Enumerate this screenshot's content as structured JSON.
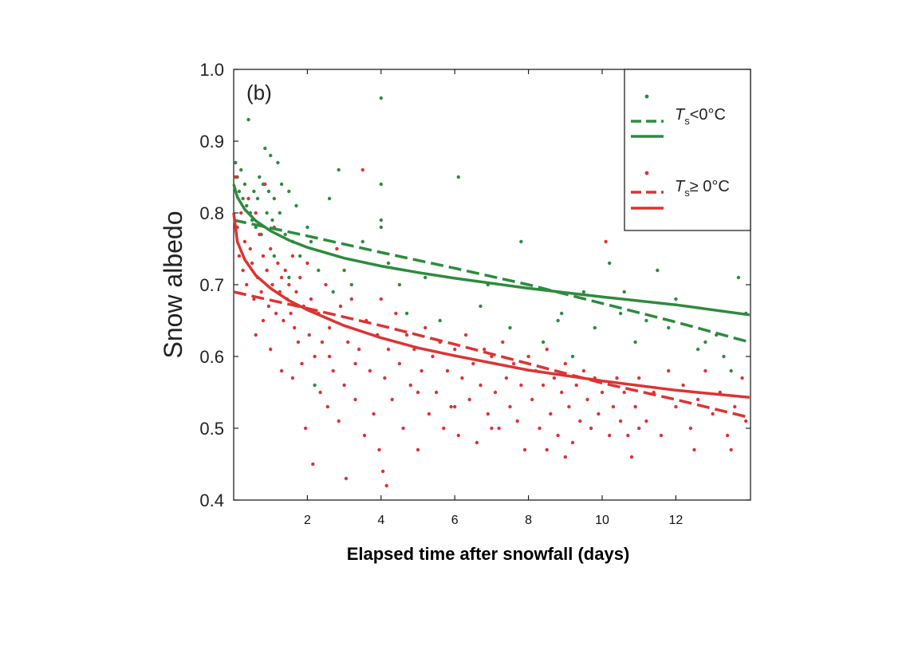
{
  "chart_data": {
    "type": "scatter",
    "panel_label": "(b)",
    "xlabel": "Elapsed time after snowfall (days)",
    "ylabel": "Snow albedo",
    "xlim": [
      0,
      14
    ],
    "ylim": [
      0.4,
      1.0
    ],
    "x_ticks": [
      2,
      4,
      6,
      8,
      10,
      12
    ],
    "y_ticks": [
      "0.4",
      "0.5",
      "0.6",
      "0.7",
      "0.8",
      "0.9",
      "1.0"
    ],
    "grid": false,
    "legend_position": "top-right",
    "legend": {
      "cold_symbol": "T",
      "cold_subscript": "s",
      "cold_condition": "<0°C",
      "warm_symbol": "T",
      "warm_subscript": "s",
      "warm_condition": "≥ 0°C"
    },
    "series": [
      {
        "kind": "points",
        "group": "cold",
        "color": "#2e8b3e",
        "points": [
          [
            0.05,
            0.87
          ],
          [
            0.1,
            0.85
          ],
          [
            0.15,
            0.83
          ],
          [
            0.2,
            0.86
          ],
          [
            0.25,
            0.82
          ],
          [
            0.3,
            0.84
          ],
          [
            0.35,
            0.81
          ],
          [
            0.4,
            0.93
          ],
          [
            0.45,
            0.8
          ],
          [
            0.5,
            0.79
          ],
          [
            0.55,
            0.83
          ],
          [
            0.6,
            0.78
          ],
          [
            0.65,
            0.82
          ],
          [
            0.7,
            0.85
          ],
          [
            0.75,
            0.77
          ],
          [
            0.8,
            0.84
          ],
          [
            0.85,
            0.89
          ],
          [
            0.9,
            0.8
          ],
          [
            0.95,
            0.83
          ],
          [
            1.0,
            0.88
          ],
          [
            1.05,
            0.79
          ],
          [
            1.1,
            0.82
          ],
          [
            1.2,
            0.87
          ],
          [
            1.25,
            0.8
          ],
          [
            1.3,
            0.84
          ],
          [
            1.4,
            0.77
          ],
          [
            1.5,
            0.83
          ],
          [
            1.6,
            0.76
          ],
          [
            1.7,
            0.81
          ],
          [
            1.8,
            0.74
          ],
          [
            2.0,
            0.78
          ],
          [
            2.1,
            0.76
          ],
          [
            2.3,
            0.72
          ],
          [
            2.6,
            0.82
          ],
          [
            2.85,
            0.86
          ],
          [
            3.0,
            0.72
          ],
          [
            3.2,
            0.7
          ],
          [
            3.5,
            0.76
          ],
          [
            4.0,
            0.96
          ],
          [
            4.0,
            0.84
          ],
          [
            4.0,
            0.79
          ],
          [
            4.0,
            0.78
          ],
          [
            4.2,
            0.73
          ],
          [
            4.5,
            0.7
          ],
          [
            5.2,
            0.71
          ],
          [
            6.1,
            0.85
          ],
          [
            7.8,
            0.76
          ],
          [
            8.8,
            0.65
          ],
          [
            9.5,
            0.69
          ],
          [
            9.8,
            0.64
          ],
          [
            10.2,
            0.73
          ],
          [
            10.5,
            0.66
          ],
          [
            11.2,
            0.65
          ],
          [
            11.5,
            0.72
          ],
          [
            12.0,
            0.68
          ],
          [
            12.4,
            0.97
          ],
          [
            12.8,
            0.62
          ],
          [
            13.3,
            0.6
          ],
          [
            13.7,
            0.71
          ],
          [
            13.9,
            0.66
          ],
          [
            1.5,
            0.71
          ],
          [
            2.2,
            0.56
          ],
          [
            3.9,
            0.63
          ],
          [
            5.6,
            0.65
          ],
          [
            6.7,
            0.67
          ],
          [
            7.5,
            0.64
          ],
          [
            8.4,
            0.62
          ],
          [
            9.2,
            0.6
          ],
          [
            10.9,
            0.62
          ],
          [
            11.8,
            0.64
          ],
          [
            12.6,
            0.61
          ],
          [
            13.1,
            0.63
          ],
          [
            13.5,
            0.58
          ],
          [
            0.9,
            0.72
          ],
          [
            1.1,
            0.74
          ],
          [
            2.7,
            0.69
          ],
          [
            4.7,
            0.66
          ],
          [
            6.9,
            0.7
          ],
          [
            8.9,
            0.66
          ],
          [
            10.6,
            0.69
          ]
        ]
      },
      {
        "kind": "points",
        "group": "warm",
        "color": "#dd3333",
        "points": [
          [
            0.05,
            0.85
          ],
          [
            0.1,
            0.78
          ],
          [
            0.15,
            0.74
          ],
          [
            0.2,
            0.8
          ],
          [
            0.25,
            0.72
          ],
          [
            0.3,
            0.76
          ],
          [
            0.35,
            0.7
          ],
          [
            0.4,
            0.82
          ],
          [
            0.45,
            0.75
          ],
          [
            0.5,
            0.73
          ],
          [
            0.55,
            0.68
          ],
          [
            0.6,
            0.8
          ],
          [
            0.65,
            0.71
          ],
          [
            0.7,
            0.77
          ],
          [
            0.75,
            0.69
          ],
          [
            0.8,
            0.74
          ],
          [
            0.85,
            0.84
          ],
          [
            0.9,
            0.72
          ],
          [
            0.95,
            0.67
          ],
          [
            1.0,
            0.75
          ],
          [
            1.05,
            0.7
          ],
          [
            1.1,
            0.78
          ],
          [
            1.15,
            0.66
          ],
          [
            1.2,
            0.73
          ],
          [
            1.25,
            0.69
          ],
          [
            1.3,
            0.71
          ],
          [
            1.35,
            0.65
          ],
          [
            1.4,
            0.72
          ],
          [
            1.45,
            0.68
          ],
          [
            1.5,
            0.7
          ],
          [
            1.55,
            0.66
          ],
          [
            1.6,
            0.74
          ],
          [
            1.65,
            0.64
          ],
          [
            1.7,
            0.69
          ],
          [
            1.75,
            0.62
          ],
          [
            1.8,
            0.71
          ],
          [
            1.85,
            0.59
          ],
          [
            1.9,
            0.67
          ],
          [
            1.95,
            0.5
          ],
          [
            2.0,
            0.73
          ],
          [
            2.05,
            0.63
          ],
          [
            2.1,
            0.68
          ],
          [
            2.15,
            0.45
          ],
          [
            2.2,
            0.6
          ],
          [
            2.3,
            0.66
          ],
          [
            2.35,
            0.55
          ],
          [
            2.4,
            0.62
          ],
          [
            2.5,
            0.7
          ],
          [
            2.55,
            0.53
          ],
          [
            2.6,
            0.64
          ],
          [
            2.7,
            0.58
          ],
          [
            2.8,
            0.75
          ],
          [
            2.85,
            0.51
          ],
          [
            2.9,
            0.67
          ],
          [
            3.0,
            0.56
          ],
          [
            3.05,
            0.43
          ],
          [
            3.1,
            0.62
          ],
          [
            3.2,
            0.68
          ],
          [
            3.3,
            0.54
          ],
          [
            3.4,
            0.61
          ],
          [
            3.5,
            0.86
          ],
          [
            3.55,
            0.49
          ],
          [
            3.6,
            0.65
          ],
          [
            3.7,
            0.58
          ],
          [
            3.8,
            0.52
          ],
          [
            3.9,
            0.63
          ],
          [
            3.95,
            0.47
          ],
          [
            4.0,
            0.68
          ],
          [
            4.05,
            0.44
          ],
          [
            4.1,
            0.57
          ],
          [
            4.15,
            0.42
          ],
          [
            4.2,
            0.61
          ],
          [
            4.3,
            0.54
          ],
          [
            4.4,
            0.66
          ],
          [
            4.5,
            0.59
          ],
          [
            4.6,
            0.5
          ],
          [
            4.7,
            0.63
          ],
          [
            4.8,
            0.56
          ],
          [
            4.9,
            0.61
          ],
          [
            5.0,
            0.47
          ],
          [
            5.1,
            0.58
          ],
          [
            5.2,
            0.64
          ],
          [
            5.3,
            0.52
          ],
          [
            5.4,
            0.6
          ],
          [
            5.5,
            0.55
          ],
          [
            5.6,
            0.62
          ],
          [
            5.7,
            0.5
          ],
          [
            5.8,
            0.58
          ],
          [
            5.9,
            0.53
          ],
          [
            6.0,
            0.61
          ],
          [
            6.1,
            0.49
          ],
          [
            6.2,
            0.57
          ],
          [
            6.3,
            0.63
          ],
          [
            6.4,
            0.54
          ],
          [
            6.5,
            0.59
          ],
          [
            6.6,
            0.48
          ],
          [
            6.7,
            0.56
          ],
          [
            6.8,
            0.61
          ],
          [
            6.9,
            0.52
          ],
          [
            7.0,
            0.6
          ],
          [
            7.1,
            0.55
          ],
          [
            7.2,
            0.5
          ],
          [
            7.3,
            0.62
          ],
          [
            7.4,
            0.57
          ],
          [
            7.5,
            0.53
          ],
          [
            7.6,
            0.59
          ],
          [
            7.7,
            0.51
          ],
          [
            7.8,
            0.56
          ],
          [
            7.9,
            0.47
          ],
          [
            8.0,
            0.6
          ],
          [
            8.1,
            0.54
          ],
          [
            8.2,
            0.58
          ],
          [
            8.3,
            0.5
          ],
          [
            8.4,
            0.56
          ],
          [
            8.5,
            0.61
          ],
          [
            8.6,
            0.52
          ],
          [
            8.7,
            0.57
          ],
          [
            8.8,
            0.49
          ],
          [
            8.9,
            0.55
          ],
          [
            9.0,
            0.59
          ],
          [
            9.1,
            0.53
          ],
          [
            9.2,
            0.48
          ],
          [
            9.3,
            0.56
          ],
          [
            9.4,
            0.51
          ],
          [
            9.5,
            0.58
          ],
          [
            9.6,
            0.54
          ],
          [
            9.7,
            0.5
          ],
          [
            9.8,
            0.57
          ],
          [
            9.9,
            0.52
          ],
          [
            10.0,
            0.55
          ],
          [
            10.1,
            0.76
          ],
          [
            10.2,
            0.49
          ],
          [
            10.3,
            0.53
          ],
          [
            10.4,
            0.57
          ],
          [
            10.5,
            0.51
          ],
          [
            10.6,
            0.55
          ],
          [
            10.7,
            0.49
          ],
          [
            10.8,
            0.46
          ],
          [
            10.9,
            0.53
          ],
          [
            11.0,
            0.57
          ],
          [
            11.2,
            0.51
          ],
          [
            11.4,
            0.55
          ],
          [
            11.6,
            0.49
          ],
          [
            11.8,
            0.58
          ],
          [
            12.0,
            0.53
          ],
          [
            12.2,
            0.56
          ],
          [
            12.4,
            0.5
          ],
          [
            12.6,
            0.54
          ],
          [
            12.8,
            0.58
          ],
          [
            13.0,
            0.52
          ],
          [
            13.2,
            0.55
          ],
          [
            13.4,
            0.49
          ],
          [
            13.6,
            0.53
          ],
          [
            13.8,
            0.57
          ],
          [
            13.9,
            0.51
          ],
          [
            0.6,
            0.63
          ],
          [
            0.8,
            0.65
          ],
          [
            1.0,
            0.61
          ],
          [
            1.3,
            0.58
          ],
          [
            1.6,
            0.57
          ],
          [
            2.6,
            0.6
          ],
          [
            3.3,
            0.59
          ],
          [
            5.0,
            0.55
          ],
          [
            6.0,
            0.53
          ],
          [
            7.0,
            0.5
          ],
          [
            8.5,
            0.47
          ],
          [
            9.0,
            0.46
          ],
          [
            11.0,
            0.5
          ],
          [
            12.5,
            0.47
          ],
          [
            13.5,
            0.47
          ]
        ]
      },
      {
        "kind": "line",
        "group": "cold",
        "style": "dashed",
        "color": "#2e8b3e",
        "x": [
          0,
          2,
          4,
          6,
          8,
          10,
          12,
          14
        ],
        "y": [
          0.79,
          0.768,
          0.745,
          0.723,
          0.7,
          0.674,
          0.648,
          0.62
        ]
      },
      {
        "kind": "line",
        "group": "cold",
        "style": "solid",
        "color": "#2e8b3e",
        "x": [
          0,
          0.1,
          0.3,
          0.6,
          1,
          1.5,
          2,
          3,
          4,
          5,
          6,
          8,
          10,
          12,
          14
        ],
        "y": [
          0.84,
          0.822,
          0.805,
          0.789,
          0.775,
          0.762,
          0.752,
          0.737,
          0.726,
          0.717,
          0.709,
          0.695,
          0.683,
          0.672,
          0.658
        ]
      },
      {
        "kind": "line",
        "group": "warm",
        "style": "dashed",
        "color": "#dd3333",
        "x": [
          0,
          2,
          4,
          6,
          8,
          10,
          12,
          14
        ],
        "y": [
          0.69,
          0.667,
          0.643,
          0.617,
          0.59,
          0.563,
          0.54,
          0.515
        ]
      },
      {
        "kind": "line",
        "group": "warm",
        "style": "solid",
        "color": "#dd3333",
        "x": [
          0,
          0.1,
          0.3,
          0.6,
          1,
          1.5,
          2,
          3,
          4,
          5,
          6,
          8,
          10,
          12,
          14
        ],
        "y": [
          0.8,
          0.76,
          0.735,
          0.713,
          0.695,
          0.678,
          0.665,
          0.643,
          0.626,
          0.612,
          0.601,
          0.581,
          0.566,
          0.553,
          0.543
        ]
      }
    ]
  }
}
